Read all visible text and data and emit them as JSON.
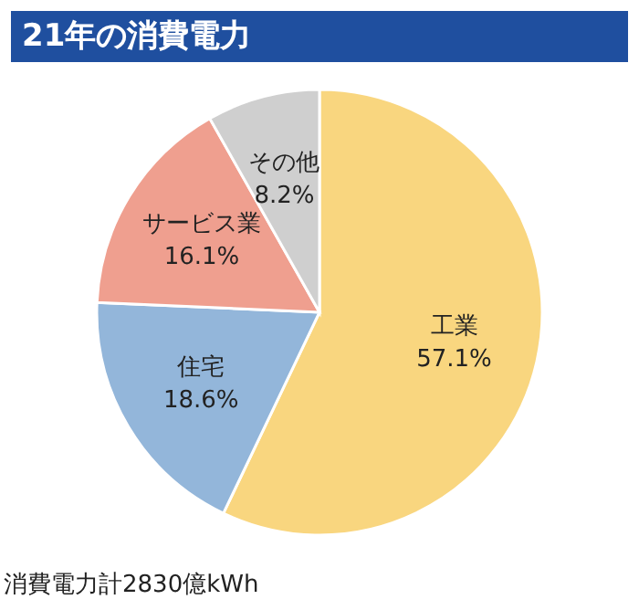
{
  "chart_data": {
    "type": "pie",
    "title": "21年の消費電力",
    "categories": [
      "工業",
      "住宅",
      "サービス業",
      "その他"
    ],
    "values": [
      57.1,
      18.6,
      16.1,
      8.2
    ],
    "value_labels": [
      "57.1%",
      "18.6%",
      "16.1%",
      "8.2%"
    ],
    "colors": [
      "#f9d67f",
      "#93b6da",
      "#ef9f8f",
      "#cfcfcf"
    ],
    "annotations": [
      "消費電力計2830億kWh"
    ],
    "legend": false
  }
}
